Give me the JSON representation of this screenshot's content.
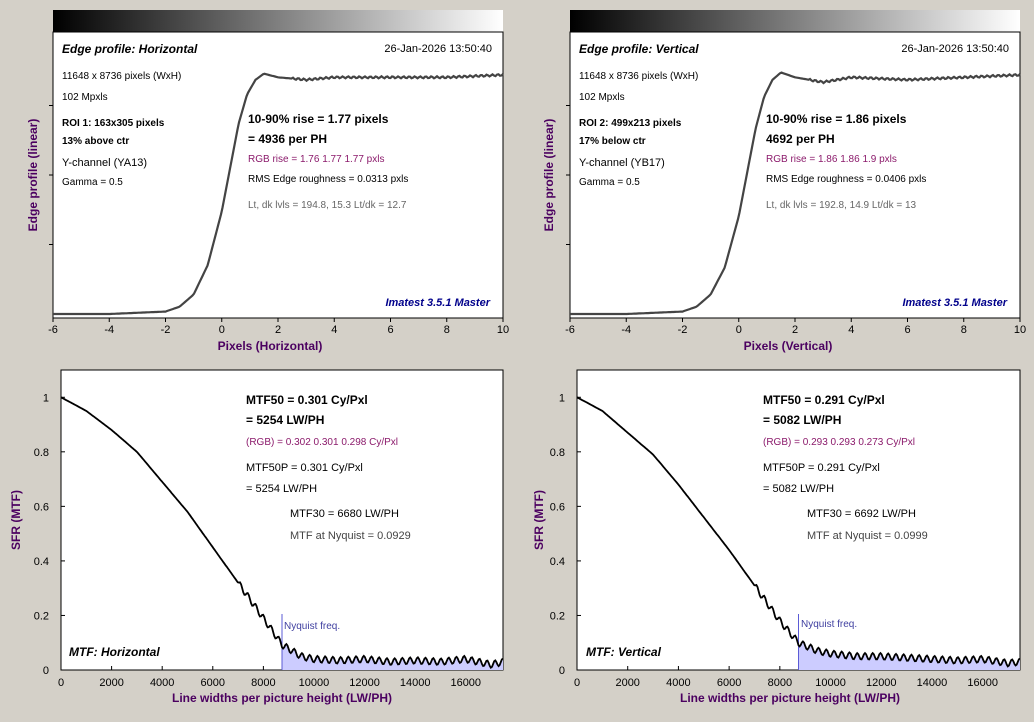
{
  "edge_panels": [
    {
      "title": "Edge profile: Horizontal",
      "timestamp": "26-Jan-2026 13:50:40",
      "info_lines": [
        "11648 x 8736 pixels (WxH)",
        "102 Mpxls"
      ],
      "roi_line1": "ROI 1:  163x305 pixels",
      "roi_line2": "13% above ctr",
      "channel": "Y-channel  (YA13)",
      "gamma": "Gamma = 0.5",
      "rise_line1": "10-90% rise = 1.77 pixels",
      "rise_line2": "= 4936 per PH",
      "rgb_rise": "RGB rise = 1.76  1.77  1.77 pxls",
      "rms": "RMS Edge roughness = 0.0313 pxls",
      "levels": "Lt, dk lvls = 194.8, 15.3   Lt/dk = 12.7",
      "watermark": "Imatest 3.5.1 Master",
      "xlabel": "Pixels (Horizontal)",
      "ylabel": "Edge profile (linear)"
    },
    {
      "title": "Edge profile: Vertical",
      "timestamp": "26-Jan-2026 13:50:40",
      "info_lines": [
        "11648 x 8736 pixels (WxH)",
        "102 Mpxls"
      ],
      "roi_line1": "ROI 2:  499x213 pixels",
      "roi_line2": "17% below ctr",
      "channel": "Y-channel  (YB17)",
      "gamma": "Gamma = 0.5",
      "rise_line1": "10-90% rise = 1.86 pixels",
      "rise_line2": "4692 per PH",
      "rgb_rise": "RGB rise = 1.86  1.86  1.9 pxls",
      "rms": "RMS Edge roughness = 0.0406 pxls",
      "levels": "Lt, dk lvls = 192.8, 14.9   Lt/dk = 13",
      "watermark": "Imatest 3.5.1 Master",
      "xlabel": "Pixels (Vertical)",
      "ylabel": "Edge profile (linear)"
    }
  ],
  "mtf_panels": [
    {
      "label": "MTF: Horizontal",
      "mtf50_line1": "MTF50 = 0.301 Cy/Pxl",
      "mtf50_line2": "= 5254 LW/PH",
      "rgb": "(RGB) = 0.302  0.301  0.298 Cy/Pxl",
      "mtf50p_line1": "MTF50P = 0.301 Cy/Pxl",
      "mtf50p_line2": "= 5254 LW/PH",
      "mtf30": "MTF30 = 6680 LW/PH",
      "nyq_value": "MTF at Nyquist = 0.0929",
      "nyquist_label": "Nyquist freq.",
      "xlabel": "Line widths per picture height (LW/PH)",
      "ylabel": "SFR (MTF)"
    },
    {
      "label": "MTF: Vertical",
      "mtf50_line1": "MTF50 = 0.291 Cy/Pxl",
      "mtf50_line2": "= 5082 LW/PH",
      "rgb": "(RGB) = 0.293  0.293  0.273 Cy/Pxl",
      "mtf50p_line1": "MTF50P = 0.291 Cy/Pxl",
      "mtf50p_line2": "= 5082 LW/PH",
      "mtf30": "MTF30 = 6692 LW/PH",
      "nyq_value": "MTF at Nyquist = 0.0999",
      "nyquist_label": "Nyquist freq.",
      "xlabel": "Line widths per picture height (LW/PH)",
      "ylabel": "SFR (MTF)"
    }
  ],
  "chart_data": [
    {
      "type": "line",
      "xlabel": "Pixels (Horizontal)",
      "ylabel": "Edge profile (linear)",
      "xlim": [
        -6,
        10
      ],
      "xticks": [
        -6,
        -4,
        -2,
        0,
        2,
        4,
        6,
        8,
        10
      ],
      "rise_10_90_pixels": 1.77,
      "series": [
        {
          "x": [
            -6,
            -4,
            -2,
            -1.5,
            -1,
            -0.5,
            0,
            0.3,
            0.6,
            0.9,
            1.2,
            1.5,
            2,
            3,
            4,
            6,
            8,
            10
          ],
          "y": [
            0.0,
            0.0,
            0.01,
            0.03,
            0.08,
            0.2,
            0.42,
            0.6,
            0.78,
            0.9,
            0.96,
            0.985,
            0.97,
            0.96,
            0.97,
            0.97,
            0.97,
            0.98
          ]
        }
      ]
    },
    {
      "type": "line",
      "xlabel": "Pixels (Vertical)",
      "ylabel": "Edge profile (linear)",
      "xlim": [
        -6,
        10
      ],
      "xticks": [
        -6,
        -4,
        -2,
        0,
        2,
        4,
        6,
        8,
        10
      ],
      "rise_10_90_pixels": 1.86,
      "series": [
        {
          "x": [
            -6,
            -4,
            -2,
            -1.5,
            -1,
            -0.5,
            0,
            0.3,
            0.6,
            0.9,
            1.2,
            1.5,
            2,
            3,
            4,
            6,
            8,
            10
          ],
          "y": [
            0.0,
            0.0,
            0.01,
            0.03,
            0.08,
            0.19,
            0.4,
            0.58,
            0.76,
            0.89,
            0.96,
            0.99,
            0.97,
            0.95,
            0.97,
            0.96,
            0.97,
            0.98
          ]
        }
      ]
    },
    {
      "type": "line",
      "xlabel": "Line widths per picture height (LW/PH)",
      "ylabel": "SFR (MTF)",
      "xlim": [
        0,
        17472
      ],
      "ylim": [
        0,
        1.1
      ],
      "xticks": [
        0,
        2000,
        4000,
        6000,
        8000,
        10000,
        12000,
        14000,
        16000
      ],
      "yticks": [
        0,
        0.2,
        0.4,
        0.6,
        0.8,
        1
      ],
      "nyquist_lwph": 8736,
      "series": [
        {
          "x": [
            0,
            1000,
            2000,
            3000,
            4000,
            5000,
            6000,
            7000,
            8000,
            8736,
            9500,
            10000,
            11000,
            12000,
            13000,
            14000,
            15000,
            16000,
            17000,
            17472
          ],
          "y": [
            1.0,
            0.95,
            0.88,
            0.8,
            0.69,
            0.58,
            0.45,
            0.32,
            0.19,
            0.093,
            0.05,
            0.04,
            0.035,
            0.04,
            0.03,
            0.035,
            0.03,
            0.04,
            0.02,
            0.03
          ]
        }
      ]
    },
    {
      "type": "line",
      "xlabel": "Line widths per picture height (LW/PH)",
      "ylabel": "SFR (MTF)",
      "xlim": [
        0,
        17472
      ],
      "ylim": [
        0,
        1.1
      ],
      "xticks": [
        0,
        2000,
        4000,
        6000,
        8000,
        10000,
        12000,
        14000,
        16000
      ],
      "yticks": [
        0,
        0.2,
        0.4,
        0.6,
        0.8,
        1
      ],
      "nyquist_lwph": 8736,
      "series": [
        {
          "x": [
            0,
            1000,
            2000,
            3000,
            4000,
            5000,
            6000,
            7000,
            8000,
            8736,
            9500,
            10000,
            11000,
            12000,
            13000,
            14000,
            15000,
            16000,
            17000,
            17472
          ],
          "y": [
            1.0,
            0.95,
            0.87,
            0.79,
            0.68,
            0.56,
            0.44,
            0.31,
            0.18,
            0.1,
            0.07,
            0.06,
            0.05,
            0.05,
            0.045,
            0.04,
            0.035,
            0.04,
            0.025,
            0.03
          ]
        }
      ]
    }
  ],
  "colors": {
    "background": "#d4d0c8",
    "label": "#4b0060",
    "watermark": "#00008b",
    "rgb_text": "#8b1a6b",
    "curve": "#222222",
    "nyquist_line": "#5b5bd6",
    "nyquist_fill": "#ccccff"
  }
}
